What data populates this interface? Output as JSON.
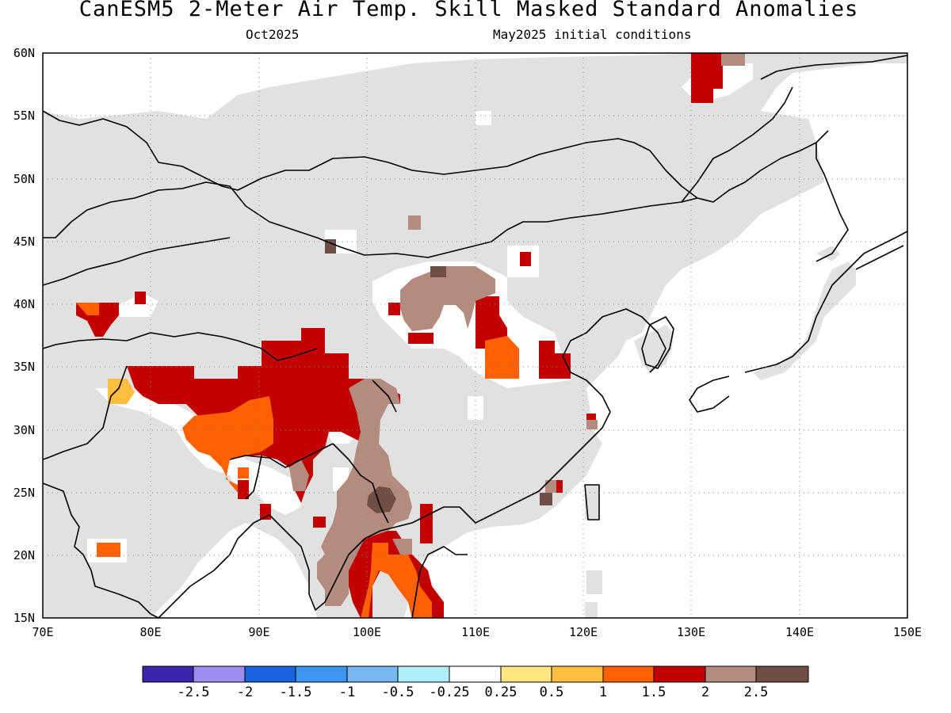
{
  "header": {
    "title": "CanESM5 2-Meter Air Temp. Skill Masked Standard Anomalies",
    "valid_month": "Oct2025",
    "init_conditions": "May2025 initial conditions"
  },
  "map": {
    "lat_labels": [
      "60N",
      "55N",
      "50N",
      "45N",
      "40N",
      "35N",
      "30N",
      "25N",
      "20N",
      "15N"
    ],
    "lon_labels": [
      "70E",
      "80E",
      "90E",
      "100E",
      "110E",
      "120E",
      "130E",
      "140E",
      "150E"
    ],
    "extent": {
      "lon": [
        70,
        150
      ],
      "lat": [
        15,
        60
      ]
    },
    "grid": "dotted",
    "colors": {
      "land_masked": "#e1e1e1",
      "ocean": "#ffffff",
      "coast": "#000000"
    }
  },
  "colorbar": {
    "labels": [
      "-2.5",
      "-2",
      "-1.5",
      "-1",
      "-0.5",
      "-0.25",
      "0.25",
      "0.5",
      "1",
      "1.5",
      "2",
      "2.5"
    ],
    "colors": [
      "#3a26ad",
      "#9e8cf0",
      "#1a63e0",
      "#3d95f2",
      "#78b8f2",
      "#b0ecfa",
      "#ffffff",
      "#ffe680",
      "#ffbe3d",
      "#ff6100",
      "#c20000",
      "#b38b7f",
      "#704d45"
    ]
  }
}
